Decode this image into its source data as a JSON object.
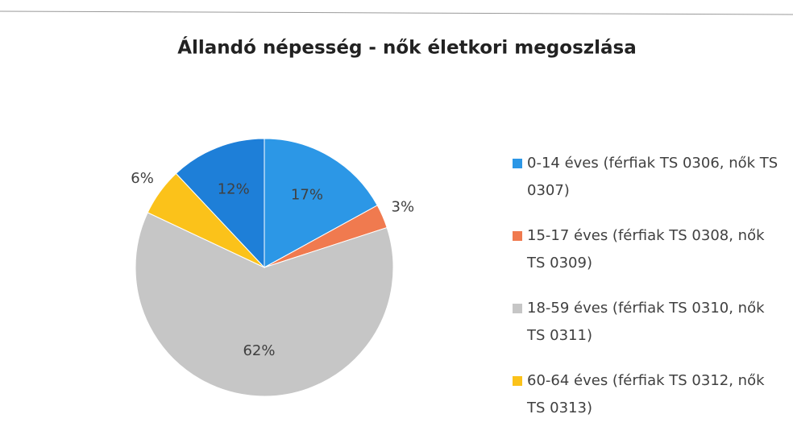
{
  "chart_data": {
    "type": "pie",
    "title": "Állandó népesség - nők életkori megoszlása",
    "categories": [
      "0-14 éves (férfiak TS 0306, nők TS 0307)",
      "15-17 éves (férfiak TS 0308, nők TS 0309)",
      "18-59 éves (férfiak TS 0310, nők TS 0311)",
      "60-64 éves (férfiak TS 0312, nők TS 0313)",
      null
    ],
    "values": [
      17,
      3,
      62,
      6,
      12
    ],
    "value_labels": [
      "17%",
      "3%",
      "62%",
      "6%",
      "12%"
    ],
    "colors": [
      "#2c97e6",
      "#f07a4f",
      "#c6c6c6",
      "#fbc21a",
      "#1e7fd8"
    ],
    "legend": "right"
  }
}
